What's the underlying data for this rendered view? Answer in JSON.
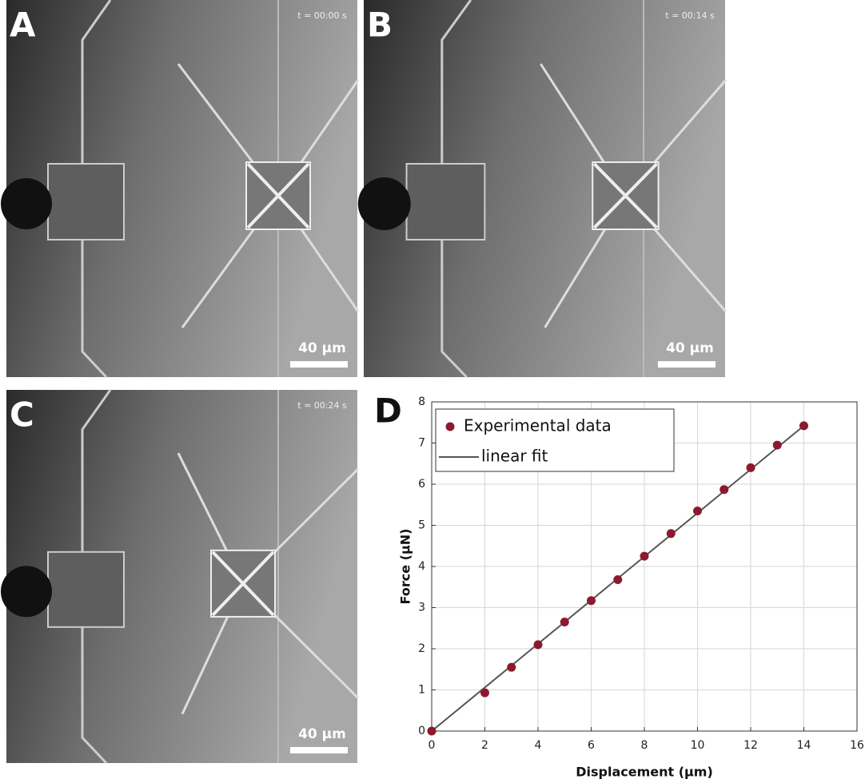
{
  "panels": [
    {
      "label": "A",
      "time": "t = 00:00 s",
      "scale_bar": "40 µm"
    },
    {
      "label": "B",
      "time": "t = 00:14 s",
      "scale_bar": "40 µm"
    },
    {
      "label": "C",
      "time": "t = 00:24 s",
      "scale_bar": "40 µm"
    }
  ],
  "chart_data": {
    "type": "scatter",
    "label": "D",
    "x_label": "Displacement (μm)",
    "y_label": "Force (μN)",
    "xlim": [
      0,
      16
    ],
    "ylim": [
      0,
      8
    ],
    "xticks": [
      0,
      2,
      4,
      6,
      8,
      10,
      12,
      14,
      16
    ],
    "yticks": [
      0,
      1,
      2,
      3,
      4,
      5,
      6,
      7,
      8
    ],
    "grid": true,
    "legend": "upper-left",
    "series": [
      {
        "name": "Experimental data",
        "kind": "points",
        "color": "#8b1a2e",
        "x": [
          0,
          2,
          3,
          4,
          5,
          6,
          7,
          8,
          9,
          10,
          11,
          12,
          13,
          14
        ],
        "values": [
          0,
          0.93,
          1.55,
          2.1,
          2.65,
          3.17,
          3.68,
          4.25,
          4.8,
          5.35,
          5.87,
          6.4,
          6.95,
          7.42
        ]
      },
      {
        "name": "linear fit",
        "kind": "line",
        "color": "#555555",
        "x": [
          0,
          14
        ],
        "values": [
          0,
          7.42
        ]
      }
    ]
  }
}
